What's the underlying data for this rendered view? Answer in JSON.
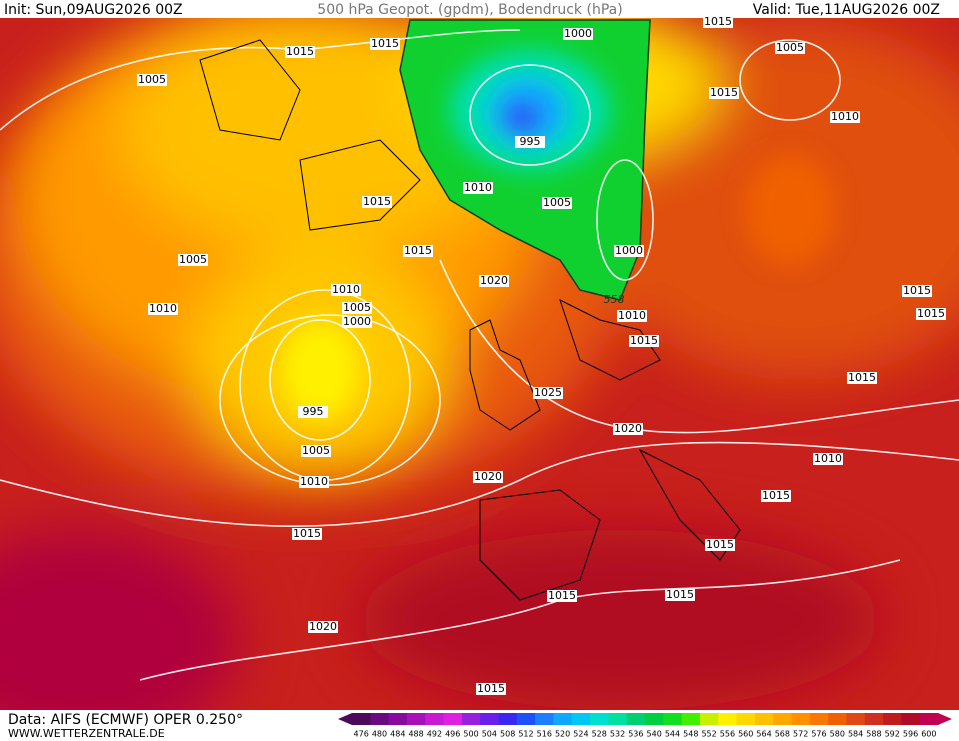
{
  "header": {
    "init": "Init: Sun,09AUG2026 00Z",
    "title": "500 hPa Geopot. (gpdm), Bodendruck (hPa)",
    "valid": "Valid: Tue,11AUG2026 00Z"
  },
  "footer": {
    "source": "Data: AIFS (ECMWF) OPER 0.250°",
    "website": "WWW.WETTERZENTRALE.DE"
  },
  "colorbar": {
    "labels": [
      476,
      480,
      484,
      488,
      492,
      496,
      500,
      504,
      508,
      512,
      516,
      520,
      524,
      528,
      532,
      536,
      540,
      544,
      548,
      552,
      556,
      560,
      564,
      568,
      572,
      576,
      580,
      584,
      588,
      592,
      596,
      600
    ],
    "colors": [
      "#4b0a5a",
      "#6a0a80",
      "#8a0aa0",
      "#a810b8",
      "#c81ad0",
      "#e020e0",
      "#9a20e0",
      "#6a20e8",
      "#3a28f0",
      "#1e50f8",
      "#1a80ff",
      "#10a8ff",
      "#00c8f0",
      "#00e0d0",
      "#00e0a0",
      "#00d070",
      "#00d040",
      "#10e020",
      "#40f000",
      "#c8f000",
      "#fff000",
      "#ffd800",
      "#ffc000",
      "#ffa800",
      "#ff9000",
      "#f87800",
      "#f06000",
      "#e04818",
      "#d03020",
      "#c01c20",
      "#b00c28",
      "#c00050"
    ]
  },
  "isobar_labels": [
    "1015",
    "1015",
    "1005",
    "1000",
    "995",
    "1015",
    "1005",
    "1015",
    "1010",
    "1015",
    "1010",
    "1005",
    "1000",
    "1015",
    "1005",
    "1010",
    "1010",
    "1005",
    "1000",
    "1020",
    "558",
    "1010",
    "1015",
    "1015",
    "1015",
    "1025",
    "995",
    "1015",
    "1020",
    "1005",
    "1010",
    "1020",
    "1010",
    "1015",
    "1015",
    "1015",
    "1015",
    "1015",
    "1020",
    "1015"
  ]
}
